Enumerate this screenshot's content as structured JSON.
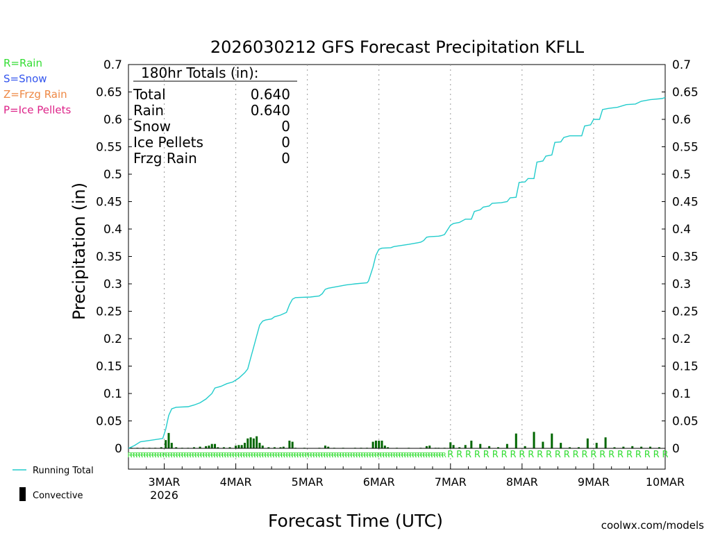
{
  "chart_data": {
    "type": "line",
    "title": "2026030212 GFS Forecast Precipitation KFLL",
    "ylabel": "Precipitation (in)",
    "xlabel": "Forecast Time (UTC)",
    "ylim": [
      0,
      0.7
    ],
    "xlim_hours": [
      -12,
      168
    ],
    "y_ticks": [
      "0",
      "0.05",
      "0.1",
      "0.15",
      "0.2",
      "0.25",
      "0.3",
      "0.35",
      "0.4",
      "0.45",
      "0.5",
      "0.55",
      "0.6",
      "0.65",
      "0.7"
    ],
    "x_ticks": [
      {
        "label": "3MAR",
        "hour": 0
      },
      {
        "label": "4MAR",
        "hour": 24
      },
      {
        "label": "5MAR",
        "hour": 48
      },
      {
        "label": "6MAR",
        "hour": 72
      },
      {
        "label": "7MAR",
        "hour": 96
      },
      {
        "label": "8MAR",
        "hour": 120
      },
      {
        "label": "9MAR",
        "hour": 144
      },
      {
        "label": "10MAR",
        "hour": 168
      }
    ],
    "year_label": "2026",
    "legend_types": [
      {
        "text": "R=Rain",
        "color": "#33dd33"
      },
      {
        "text": "S=Snow",
        "color": "#3355ee"
      },
      {
        "text": "Z=Frzg Rain",
        "color": "#ee8844"
      },
      {
        "text": "P=Ice Pellets",
        "color": "#dd2288"
      }
    ],
    "legend_series": [
      {
        "name": "Running Total",
        "color": "#22cccc"
      },
      {
        "name": "Convective",
        "color": "#000000"
      }
    ],
    "totals_box": {
      "header": "180hr Totals (in):",
      "rows": [
        {
          "label": "Total",
          "value": "0.640"
        },
        {
          "label": "Rain",
          "value": "0.640"
        },
        {
          "label": "Snow",
          "value": "0"
        },
        {
          "label": "Ice Pellets",
          "value": "0"
        },
        {
          "label": "Frzg Rain",
          "value": "0"
        }
      ]
    },
    "running_total": {
      "color": "#22cccc",
      "points": [
        [
          -12,
          0
        ],
        [
          -10,
          0.005
        ],
        [
          -8,
          0.012
        ],
        [
          -4,
          0.015
        ],
        [
          -0.5,
          0.018
        ],
        [
          0.5,
          0.035
        ],
        [
          1.5,
          0.06
        ],
        [
          2.5,
          0.072
        ],
        [
          4,
          0.075
        ],
        [
          8,
          0.076
        ],
        [
          10,
          0.079
        ],
        [
          12,
          0.083
        ],
        [
          14,
          0.09
        ],
        [
          16,
          0.1
        ],
        [
          17,
          0.11
        ],
        [
          19,
          0.113
        ],
        [
          21,
          0.118
        ],
        [
          23,
          0.121
        ],
        [
          25,
          0.128
        ],
        [
          27,
          0.138
        ],
        [
          28,
          0.145
        ],
        [
          29,
          0.165
        ],
        [
          30,
          0.185
        ],
        [
          31,
          0.205
        ],
        [
          32,
          0.225
        ],
        [
          33,
          0.232
        ],
        [
          34,
          0.234
        ],
        [
          36,
          0.236
        ],
        [
          37,
          0.24
        ],
        [
          39,
          0.243
        ],
        [
          41,
          0.248
        ],
        [
          42,
          0.262
        ],
        [
          43,
          0.272
        ],
        [
          44,
          0.275
        ],
        [
          49,
          0.276
        ],
        [
          52,
          0.278
        ],
        [
          53,
          0.282
        ],
        [
          54,
          0.29
        ],
        [
          55,
          0.292
        ],
        [
          58,
          0.295
        ],
        [
          61,
          0.298
        ],
        [
          64,
          0.3
        ],
        [
          68,
          0.302
        ],
        [
          68.5,
          0.305
        ],
        [
          70,
          0.33
        ],
        [
          71,
          0.352
        ],
        [
          72,
          0.363
        ],
        [
          73,
          0.365
        ],
        [
          76,
          0.366
        ],
        [
          77,
          0.368
        ],
        [
          82,
          0.372
        ],
        [
          85,
          0.375
        ],
        [
          86,
          0.376
        ],
        [
          87,
          0.379
        ],
        [
          88,
          0.385
        ],
        [
          89,
          0.386
        ],
        [
          92,
          0.387
        ],
        [
          93,
          0.388
        ],
        [
          94,
          0.39
        ],
        [
          96,
          0.407
        ],
        [
          97,
          0.41
        ],
        [
          99,
          0.412
        ],
        [
          101,
          0.418
        ],
        [
          103,
          0.418
        ],
        [
          104,
          0.432
        ],
        [
          106,
          0.435
        ],
        [
          107,
          0.44
        ],
        [
          109,
          0.442
        ],
        [
          110,
          0.447
        ],
        [
          113,
          0.448
        ],
        [
          115,
          0.45
        ],
        [
          116,
          0.457
        ],
        [
          118,
          0.458
        ],
        [
          119,
          0.485
        ],
        [
          121,
          0.486
        ],
        [
          122,
          0.492
        ],
        [
          124,
          0.492
        ],
        [
          125,
          0.522
        ],
        [
          127,
          0.524
        ],
        [
          128,
          0.533
        ],
        [
          130,
          0.535
        ],
        [
          131,
          0.558
        ],
        [
          133,
          0.559
        ],
        [
          134,
          0.567
        ],
        [
          136,
          0.57
        ],
        [
          140,
          0.57
        ],
        [
          141,
          0.588
        ],
        [
          143,
          0.59
        ],
        [
          144,
          0.6
        ],
        [
          146,
          0.6
        ],
        [
          147,
          0.618
        ],
        [
          149,
          0.62
        ],
        [
          152,
          0.622
        ],
        [
          155,
          0.627
        ],
        [
          158,
          0.628
        ],
        [
          160,
          0.633
        ],
        [
          163,
          0.636
        ],
        [
          167,
          0.638
        ],
        [
          168,
          0.64
        ]
      ]
    },
    "convective_bars": {
      "color": "#006600",
      "bars": [
        [
          -11,
          0.001
        ],
        [
          -9,
          0.001
        ],
        [
          -7,
          0.001
        ],
        [
          -5,
          0.001
        ],
        [
          -3,
          0.001
        ],
        [
          -1,
          0.002
        ],
        [
          0.5,
          0.015
        ],
        [
          1.5,
          0.028
        ],
        [
          2.5,
          0.01
        ],
        [
          4,
          0.002
        ],
        [
          6,
          0.001
        ],
        [
          8,
          0.001
        ],
        [
          10,
          0.002
        ],
        [
          12,
          0.003
        ],
        [
          14,
          0.004
        ],
        [
          15,
          0.005
        ],
        [
          16,
          0.008
        ],
        [
          17,
          0.008
        ],
        [
          18,
          0.002
        ],
        [
          20,
          0.002
        ],
        [
          22,
          0.002
        ],
        [
          24,
          0.005
        ],
        [
          25,
          0.006
        ],
        [
          26,
          0.006
        ],
        [
          27,
          0.01
        ],
        [
          28,
          0.018
        ],
        [
          29,
          0.02
        ],
        [
          30,
          0.018
        ],
        [
          31,
          0.022
        ],
        [
          32,
          0.01
        ],
        [
          33,
          0.005
        ],
        [
          35,
          0.002
        ],
        [
          37,
          0.002
        ],
        [
          39,
          0.002
        ],
        [
          40,
          0.003
        ],
        [
          42,
          0.014
        ],
        [
          43,
          0.012
        ],
        [
          44,
          0.001
        ],
        [
          47,
          0.001
        ],
        [
          52,
          0.001
        ],
        [
          54,
          0.005
        ],
        [
          55,
          0.003
        ],
        [
          57,
          0.001
        ],
        [
          60,
          0.001
        ],
        [
          64,
          0.001
        ],
        [
          66,
          0.001
        ],
        [
          68,
          0.001
        ],
        [
          70,
          0.012
        ],
        [
          71,
          0.014
        ],
        [
          72,
          0.014
        ],
        [
          73,
          0.014
        ],
        [
          74,
          0.005
        ],
        [
          75,
          0.002
        ],
        [
          78,
          0.001
        ],
        [
          82,
          0.001
        ],
        [
          86,
          0.001
        ],
        [
          88,
          0.004
        ],
        [
          89,
          0.005
        ],
        [
          91,
          0.001
        ],
        [
          92,
          0.001
        ],
        [
          94,
          0.001
        ],
        [
          96,
          0.011
        ],
        [
          97,
          0.006
        ],
        [
          99,
          0.002
        ],
        [
          101,
          0.006
        ],
        [
          103,
          0.014
        ],
        [
          106,
          0.008
        ],
        [
          109,
          0.004
        ],
        [
          112,
          0.002
        ],
        [
          115,
          0.008
        ],
        [
          118,
          0.027
        ],
        [
          121,
          0.004
        ],
        [
          124,
          0.03
        ],
        [
          127,
          0.012
        ],
        [
          130,
          0.027
        ],
        [
          133,
          0.01
        ],
        [
          136,
          0.002
        ],
        [
          139,
          0.002
        ],
        [
          142,
          0.018
        ],
        [
          145,
          0.01
        ],
        [
          148,
          0.02
        ],
        [
          151,
          0.002
        ],
        [
          154,
          0.003
        ],
        [
          157,
          0.004
        ],
        [
          160,
          0.003
        ],
        [
          163,
          0.003
        ],
        [
          166,
          0.002
        ]
      ]
    },
    "ptype_marker": {
      "text": "R",
      "color": "#33dd33",
      "dense_end_hour": 94,
      "sparse_start_hour": 96,
      "sparse_step_hours": 3
    }
  },
  "footer": {
    "credit": "coolwx.com/models",
    "credit_color": "#cc2222"
  }
}
